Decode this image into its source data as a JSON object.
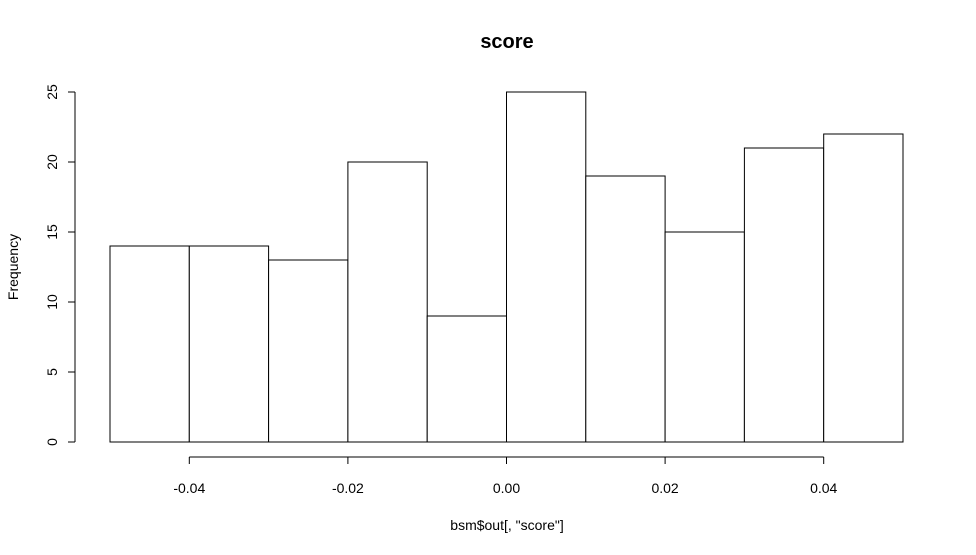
{
  "chart_data": {
    "type": "histogram",
    "title": "score",
    "xlabel": "bsm$out[, \"score\"]",
    "ylabel": "Frequency",
    "bins": [
      {
        "x0": -0.05,
        "x1": -0.04,
        "count": 14
      },
      {
        "x0": -0.04,
        "x1": -0.03,
        "count": 14
      },
      {
        "x0": -0.03,
        "x1": -0.02,
        "count": 13
      },
      {
        "x0": -0.02,
        "x1": -0.01,
        "count": 20
      },
      {
        "x0": -0.01,
        "x1": 0.0,
        "count": 9
      },
      {
        "x0": 0.0,
        "x1": 0.01,
        "count": 25
      },
      {
        "x0": 0.01,
        "x1": 0.02,
        "count": 19
      },
      {
        "x0": 0.02,
        "x1": 0.03,
        "count": 15
      },
      {
        "x0": 0.03,
        "x1": 0.04,
        "count": 21
      },
      {
        "x0": 0.04,
        "x1": 0.05,
        "count": 22
      }
    ],
    "xlim": [
      -0.05,
      0.05
    ],
    "ylim": [
      0,
      25
    ],
    "x_ticks": [
      -0.04,
      -0.02,
      0.0,
      0.02,
      0.04
    ],
    "x_tick_labels": [
      "-0.04",
      "-0.02",
      "0.00",
      "0.02",
      "0.04"
    ],
    "y_ticks": [
      0,
      5,
      10,
      15,
      20,
      25
    ],
    "y_tick_labels": [
      "0",
      "5",
      "10",
      "15",
      "20",
      "25"
    ],
    "grid": false,
    "bar_fill": "#ffffff",
    "bar_stroke": "#000000"
  }
}
